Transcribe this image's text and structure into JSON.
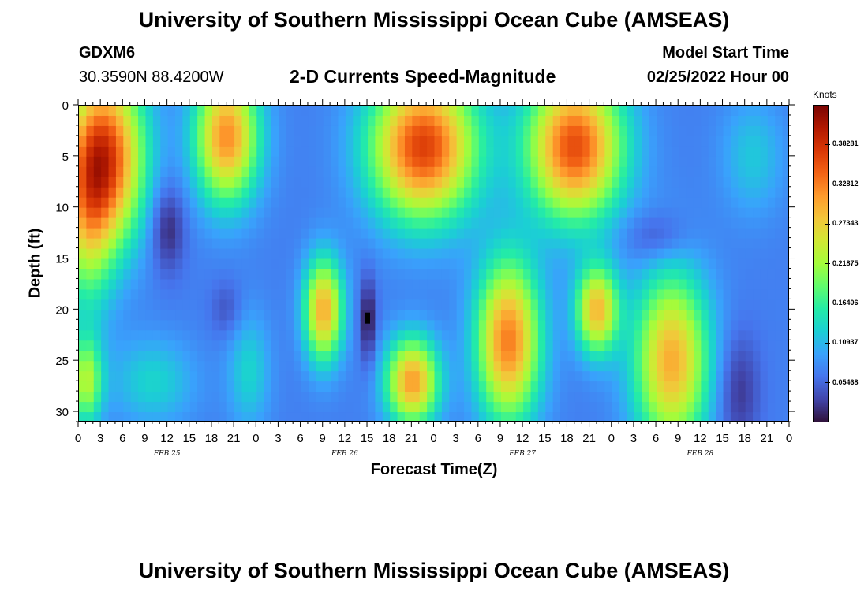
{
  "header": {
    "title": "University of Southern Mississippi Ocean Cube (AMSEAS)",
    "station": "GDXM6",
    "location": "30.3590N  88.4200W",
    "chart_title": "2-D Currents Speed-Magnitude",
    "model_start_label": "Model Start Time",
    "model_start_value": "02/25/2022 Hour 00"
  },
  "footer": {
    "title": "University of Southern Mississippi Ocean Cube (AMSEAS)"
  },
  "chart_data": {
    "type": "heatmap",
    "title": "2-D Currents Speed-Magnitude",
    "xlabel": "Forecast Time(Z)",
    "ylabel": "Depth (ft)",
    "x_tick_labels": [
      "0",
      "3",
      "6",
      "9",
      "12",
      "15",
      "18",
      "21",
      "0",
      "3",
      "6",
      "9",
      "12",
      "15",
      "18",
      "21",
      "0",
      "3",
      "6",
      "9",
      "12",
      "15",
      "18",
      "21",
      "0",
      "3",
      "6",
      "9",
      "12",
      "15",
      "18",
      "21",
      "0"
    ],
    "day_labels": [
      "FEB 25",
      "FEB 26",
      "FEB 27",
      "FEB 28"
    ],
    "y_tick_labels": [
      "0",
      "5",
      "10",
      "15",
      "20",
      "25",
      "30"
    ],
    "xlim_hours": [
      0,
      96
    ],
    "ylim_ft": [
      0,
      31
    ],
    "colorbar": {
      "title": "Knots",
      "labels": [
        "0.38281",
        "0.32812",
        "0.27343",
        "0.21875",
        "0.16406",
        "0.10937",
        "0.05468"
      ],
      "range": [
        0,
        0.4375
      ],
      "colors": [
        "#30123b",
        "#4145ab",
        "#4675ed",
        "#39a2fc",
        "#1bcfd4",
        "#24eca6",
        "#61fc6c",
        "#a4fc3b",
        "#d1e834",
        "#f3c63a",
        "#fe9b2d",
        "#f36315",
        "#d93806",
        "#b11901",
        "#7a0402"
      ]
    },
    "field": {
      "base": 0.07,
      "blobs": [
        {
          "t": 4,
          "d": 5,
          "st": 3.5,
          "sd": 6,
          "v": 0.27
        },
        {
          "t": 1,
          "d": 10,
          "st": 2.5,
          "sd": 7,
          "v": 0.15
        },
        {
          "t": 12,
          "d": 12,
          "st": 1.6,
          "sd": 3,
          "v": -0.06
        },
        {
          "t": 20,
          "d": 3,
          "st": 3,
          "sd": 4.5,
          "v": 0.25
        },
        {
          "t": 10,
          "d": 27,
          "st": 4,
          "sd": 3,
          "v": 0.06
        },
        {
          "t": 1,
          "d": 27,
          "st": 1.5,
          "sd": 3,
          "v": 0.15
        },
        {
          "t": 23,
          "d": 26,
          "st": 2,
          "sd": 4,
          "v": 0.06
        },
        {
          "t": 33,
          "d": 20,
          "st": 1.8,
          "sd": 3.5,
          "v": 0.23
        },
        {
          "t": 39,
          "d": 21,
          "st": 0.8,
          "sd": 3,
          "v": -0.07
        },
        {
          "t": 46.5,
          "d": 4,
          "st": 5,
          "sd": 5,
          "v": 0.3
        },
        {
          "t": 45,
          "d": 27,
          "st": 2.5,
          "sd": 3,
          "v": 0.24
        },
        {
          "t": 58,
          "d": 23,
          "st": 3,
          "sd": 5.5,
          "v": 0.26
        },
        {
          "t": 67,
          "d": 4,
          "st": 4.5,
          "sd": 5,
          "v": 0.29
        },
        {
          "t": 70,
          "d": 20,
          "st": 2,
          "sd": 3,
          "v": 0.22
        },
        {
          "t": 80,
          "d": 25,
          "st": 3.5,
          "sd": 6,
          "v": 0.23
        },
        {
          "t": 78,
          "d": 13,
          "st": 3,
          "sd": 1.8,
          "v": -0.04
        },
        {
          "t": 91,
          "d": 5,
          "st": 3,
          "sd": 4,
          "v": 0.05
        },
        {
          "t": 89,
          "d": 28,
          "st": 2,
          "sd": 4,
          "v": -0.05
        },
        {
          "t": 20,
          "d": 20,
          "st": 1.5,
          "sd": 2,
          "v": -0.03
        }
      ]
    },
    "marker": {
      "t": 39,
      "d": 20.8
    }
  }
}
